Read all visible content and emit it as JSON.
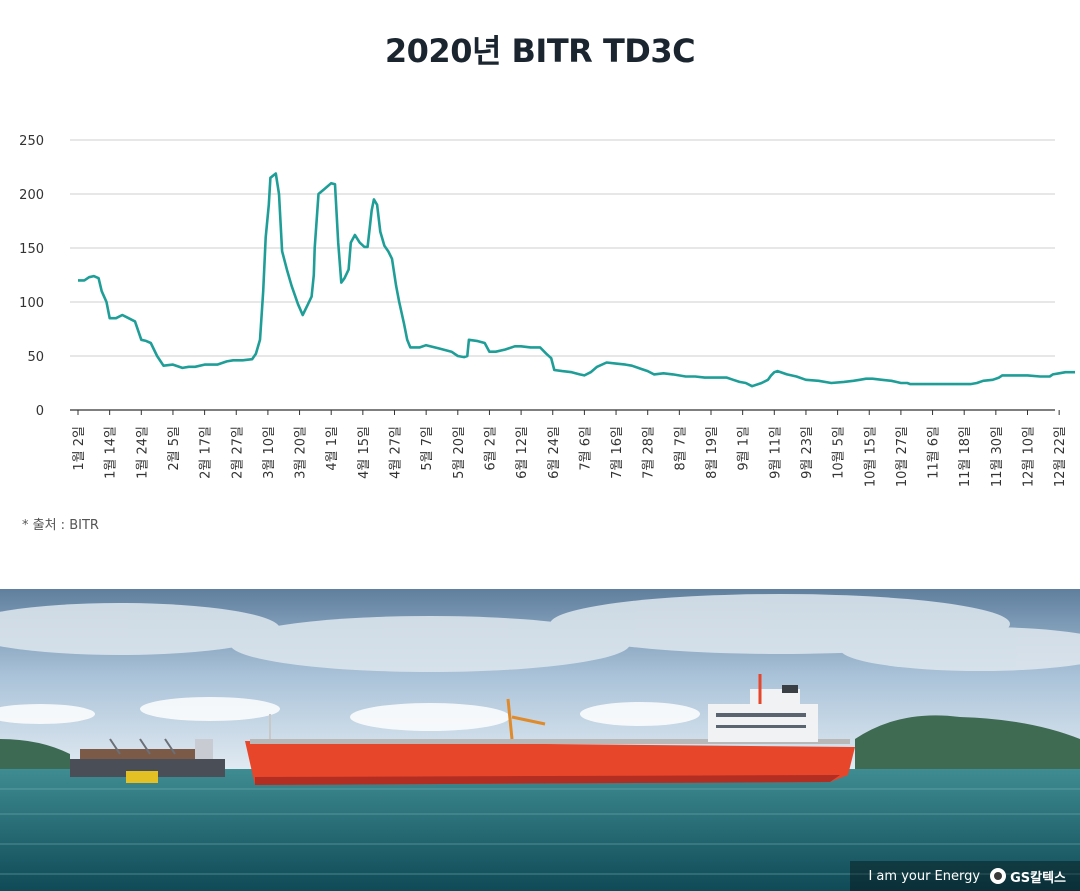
{
  "title": "2020년 BITR TD3C",
  "source": "* 출처 : BITR",
  "brand": {
    "slogan": "I am your Energy",
    "name": "GS칼텍스"
  },
  "chart_data": {
    "type": "line",
    "title": "2020년 BITR TD3C",
    "ylim": [
      0,
      250
    ],
    "yticks": [
      0,
      50,
      100,
      150,
      200,
      250
    ],
    "grid": true,
    "line_color": "#1f9e98",
    "categories": [
      "1월 2일",
      "1월 14일",
      "1월 24일",
      "2월 5일",
      "2월 17일",
      "2월 27일",
      "3월 10일",
      "3월 20일",
      "4월 1일",
      "4월 15일",
      "4월 27일",
      "5월 7일",
      "5월 20일",
      "6월 2일",
      "6월 12일",
      "6월 24일",
      "7월 6일",
      "7월 16일",
      "7월 28일",
      "8월 7일",
      "8월 19일",
      "9월 1일",
      "9월 11일",
      "9월 23일",
      "10월 5일",
      "10월 15일",
      "10월 27일",
      "11월 6일",
      "11월 18일",
      "11월 30일",
      "12월 10일",
      "12월 22일"
    ],
    "series": [
      {
        "values_by_index": [
          [
            0,
            120
          ],
          [
            0.2,
            120
          ],
          [
            0.35,
            123
          ],
          [
            0.5,
            124
          ],
          [
            0.65,
            122
          ],
          [
            0.75,
            110
          ],
          [
            0.9,
            100
          ],
          [
            1,
            85
          ],
          [
            1.2,
            85
          ],
          [
            1.4,
            88
          ],
          [
            1.6,
            85
          ],
          [
            1.8,
            82
          ],
          [
            2,
            65
          ],
          [
            2.15,
            64
          ],
          [
            2.3,
            62
          ],
          [
            2.5,
            50
          ],
          [
            2.7,
            41
          ],
          [
            3,
            42
          ],
          [
            3.3,
            39
          ],
          [
            3.5,
            40
          ],
          [
            3.7,
            40
          ],
          [
            4,
            42
          ],
          [
            4.4,
            42
          ],
          [
            4.7,
            45
          ],
          [
            4.9,
            46
          ],
          [
            5.2,
            46
          ],
          [
            5.5,
            47
          ],
          [
            5.62,
            52
          ],
          [
            5.75,
            65
          ],
          [
            5.85,
            110
          ],
          [
            5.93,
            160
          ],
          [
            6.03,
            190
          ],
          [
            6.08,
            215
          ],
          [
            6.25,
            219
          ],
          [
            6.35,
            200
          ],
          [
            6.45,
            147
          ],
          [
            6.6,
            130
          ],
          [
            6.75,
            115
          ],
          [
            6.95,
            98
          ],
          [
            7.1,
            88
          ],
          [
            7.25,
            97
          ],
          [
            7.38,
            105
          ],
          [
            7.45,
            125
          ],
          [
            7.48,
            150
          ],
          [
            7.6,
            200
          ],
          [
            7.8,
            205
          ],
          [
            8,
            210
          ],
          [
            8.12,
            209
          ],
          [
            8.22,
            155
          ],
          [
            8.32,
            118
          ],
          [
            8.42,
            122
          ],
          [
            8.55,
            130
          ],
          [
            8.62,
            155
          ],
          [
            8.75,
            162
          ],
          [
            8.9,
            155
          ],
          [
            9.05,
            151
          ],
          [
            9.15,
            151
          ],
          [
            9.28,
            185
          ],
          [
            9.35,
            195
          ],
          [
            9.45,
            190
          ],
          [
            9.55,
            165
          ],
          [
            9.68,
            152
          ],
          [
            9.8,
            147
          ],
          [
            9.92,
            140
          ],
          [
            10.05,
            115
          ],
          [
            10.15,
            100
          ],
          [
            10.3,
            80
          ],
          [
            10.4,
            65
          ],
          [
            10.5,
            58
          ],
          [
            10.8,
            58
          ],
          [
            11,
            60
          ],
          [
            11.4,
            57
          ],
          [
            11.8,
            54
          ],
          [
            12,
            50
          ],
          [
            12.2,
            49
          ],
          [
            12.3,
            50
          ],
          [
            12.35,
            65
          ],
          [
            12.6,
            64
          ],
          [
            12.85,
            62
          ],
          [
            13,
            54
          ],
          [
            13.2,
            54
          ],
          [
            13.5,
            56
          ],
          [
            13.8,
            59
          ],
          [
            14,
            59
          ],
          [
            14.3,
            58
          ],
          [
            14.6,
            58
          ],
          [
            14.8,
            52
          ],
          [
            14.95,
            48
          ],
          [
            15.05,
            37
          ],
          [
            15.3,
            36
          ],
          [
            15.6,
            35
          ],
          [
            15.85,
            33
          ],
          [
            16,
            32
          ],
          [
            16.2,
            35
          ],
          [
            16.4,
            40
          ],
          [
            16.7,
            44
          ],
          [
            17,
            43
          ],
          [
            17.3,
            42
          ],
          [
            17.5,
            41
          ],
          [
            17.8,
            38
          ],
          [
            18,
            36
          ],
          [
            18.2,
            33
          ],
          [
            18.5,
            34
          ],
          [
            18.8,
            33
          ],
          [
            19.2,
            31
          ],
          [
            19.5,
            31
          ],
          [
            19.8,
            30
          ],
          [
            20.2,
            30
          ],
          [
            20.5,
            30
          ],
          [
            20.7,
            28
          ],
          [
            20.9,
            26
          ],
          [
            21.1,
            25
          ],
          [
            21.3,
            22
          ],
          [
            21.6,
            25
          ],
          [
            21.8,
            28
          ],
          [
            21.9,
            32
          ],
          [
            22,
            35
          ],
          [
            22.1,
            36
          ],
          [
            22.4,
            33
          ],
          [
            22.7,
            31
          ],
          [
            23,
            28
          ],
          [
            23.4,
            27
          ],
          [
            23.8,
            25
          ],
          [
            24.2,
            26
          ],
          [
            24.5,
            27
          ],
          [
            24.7,
            28
          ],
          [
            24.9,
            29
          ],
          [
            25.1,
            29
          ],
          [
            25.4,
            28
          ],
          [
            25.7,
            27
          ],
          [
            25.85,
            26
          ],
          [
            26,
            25
          ],
          [
            26.2,
            25
          ],
          [
            26.3,
            24
          ],
          [
            26.6,
            24
          ],
          [
            27,
            24
          ],
          [
            27.5,
            24
          ],
          [
            27.9,
            24
          ],
          [
            28.2,
            24
          ],
          [
            28.4,
            25
          ],
          [
            28.6,
            27
          ],
          [
            28.9,
            28
          ],
          [
            29.1,
            30
          ],
          [
            29.2,
            32
          ],
          [
            29.6,
            32
          ],
          [
            30,
            32
          ],
          [
            30.4,
            31
          ],
          [
            30.7,
            31
          ],
          [
            30.8,
            33
          ],
          [
            31,
            34
          ],
          [
            31.2,
            35
          ],
          [
            31.5,
            35
          ]
        ]
      }
    ]
  }
}
